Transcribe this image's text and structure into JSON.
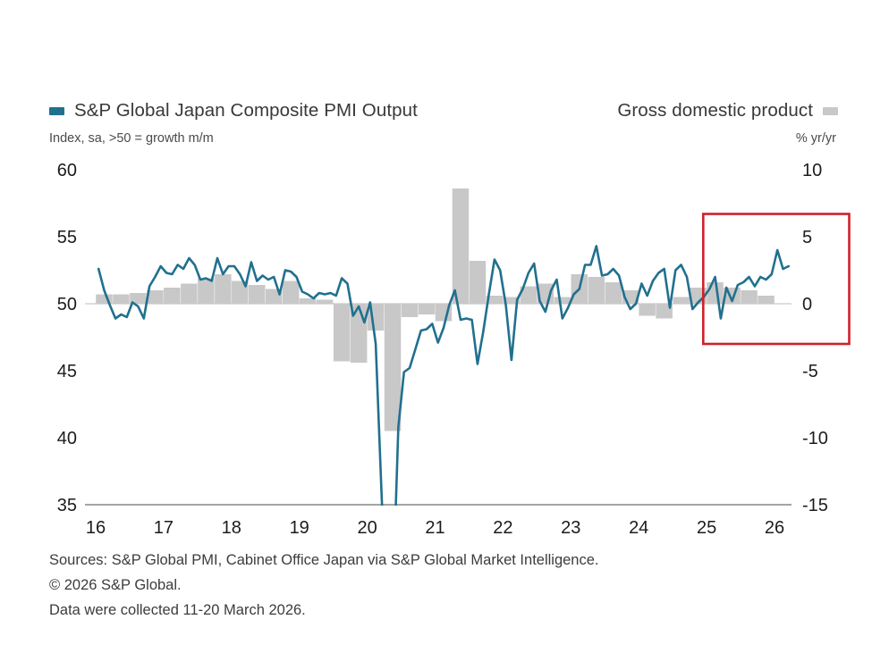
{
  "header": {
    "legend_left": "S&P Global Japan Composite PMI Output",
    "legend_right": "Gross domestic product",
    "subtitle_left": "Index, sa, >50 = growth m/m",
    "subtitle_right": "% yr/yr"
  },
  "footer": {
    "sources_line1": "Sources: S&P Global PMI, Cabinet Office Japan via S&P Global Market Intelligence.",
    "sources_line2": "© 2026 S&P Global.",
    "collected": "Data were collected 11-20 March 2026."
  },
  "colors": {
    "pmi_line": "#21708e",
    "gdp_bar": "#c8c8c8",
    "highlight_box": "#d0202a",
    "axis_line": "#858585",
    "zero_line": "#bcbcbc",
    "text": "#1c1c1c"
  },
  "chart_data": {
    "type": "line+bar",
    "title": "S&P Global Japan Composite PMI Output vs Gross domestic product",
    "left_axis": {
      "label": "Index, sa, >50 = growth m/m",
      "ticks": [
        60,
        55,
        50,
        45,
        40,
        35
      ],
      "range": [
        35,
        60
      ]
    },
    "right_axis": {
      "label": "% yr/yr",
      "ticks": [
        10,
        5,
        0,
        -5,
        -10,
        -15
      ],
      "range": [
        -15,
        10
      ]
    },
    "x_axis": {
      "ticks": [
        "16",
        "17",
        "18",
        "19",
        "20",
        "21",
        "22",
        "23",
        "24",
        "25",
        "26"
      ],
      "tick_years": [
        2016,
        2017,
        2018,
        2019,
        2020,
        2021,
        2022,
        2023,
        2024,
        2025,
        2026
      ],
      "range": [
        2015.85,
        2026.4
      ],
      "grid": false
    },
    "series": [
      {
        "name": "S&P Global Japan Composite PMI Output",
        "type": "line",
        "axis": "left",
        "frequency": "monthly",
        "start_year": 2016,
        "values": [
          52.6,
          51.0,
          49.9,
          48.9,
          49.2,
          49.0,
          50.1,
          49.8,
          48.9,
          51.3,
          52.0,
          52.8,
          52.3,
          52.2,
          52.9,
          52.6,
          53.4,
          52.9,
          51.8,
          51.9,
          51.7,
          53.4,
          52.2,
          52.8,
          52.8,
          52.2,
          51.3,
          53.1,
          51.7,
          52.1,
          51.8,
          52.0,
          50.7,
          52.5,
          52.4,
          52.0,
          50.9,
          50.7,
          50.4,
          50.8,
          50.7,
          50.8,
          50.6,
          51.9,
          51.5,
          49.1,
          49.8,
          48.6,
          50.1,
          47.0,
          36.2,
          25.8,
          27.8,
          40.8,
          44.9,
          45.2,
          46.6,
          48.0,
          48.1,
          48.5,
          47.1,
          48.2,
          49.9,
          51.0,
          48.8,
          48.9,
          48.8,
          45.5,
          47.9,
          50.7,
          53.3,
          52.5,
          49.9,
          45.8,
          50.3,
          51.1,
          52.3,
          53.0,
          50.2,
          49.4,
          51.0,
          51.8,
          48.9,
          49.7,
          50.7,
          51.1,
          52.9,
          52.9,
          54.3,
          52.1,
          52.2,
          52.6,
          52.1,
          50.5,
          49.6,
          50.0,
          51.5,
          50.6,
          51.7,
          52.3,
          52.6,
          49.7,
          52.5,
          52.9,
          52.0,
          49.6,
          50.1,
          50.5,
          51.1,
          52.0,
          48.9,
          51.2,
          50.2,
          51.4,
          51.6,
          52.0,
          51.3,
          52.0,
          51.8,
          52.2,
          54.0,
          52.6,
          52.8
        ]
      },
      {
        "name": "Gross domestic product",
        "type": "bar",
        "axis": "right",
        "frequency": "quarterly",
        "start_year": 2016,
        "values": [
          0.7,
          0.7,
          0.8,
          1.0,
          1.2,
          1.5,
          1.9,
          2.2,
          1.7,
          1.4,
          1.1,
          1.7,
          0.4,
          0.3,
          -4.3,
          -4.4,
          -2.0,
          -9.5,
          -1.0,
          -0.8,
          -1.3,
          8.6,
          3.2,
          0.6,
          0.5,
          1.3,
          1.5,
          0.5,
          2.2,
          2.0,
          1.6,
          1.0,
          -0.9,
          -1.1,
          0.5,
          1.2,
          1.6,
          1.2,
          1.0,
          0.6
        ]
      }
    ],
    "annotation": {
      "type": "highlight-rect",
      "x0_year": 2024.95,
      "x1_year": 2027.1,
      "y0_left": 47.0,
      "y1_left": 56.7
    },
    "legend_position": "top"
  }
}
